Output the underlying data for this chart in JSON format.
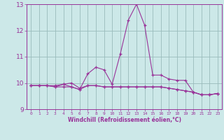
{
  "xlabel": "Windchill (Refroidissement éolien,°C)",
  "xlim": [
    -0.5,
    23.5
  ],
  "ylim": [
    9,
    13
  ],
  "yticks": [
    9,
    10,
    11,
    12,
    13
  ],
  "xticks": [
    0,
    1,
    2,
    3,
    4,
    5,
    6,
    7,
    8,
    9,
    10,
    11,
    12,
    13,
    14,
    15,
    16,
    17,
    18,
    19,
    20,
    21,
    22,
    23
  ],
  "bg_color": "#cce8e8",
  "line_color": "#993399",
  "grid_color": "#99bbbb",
  "series": [
    [
      9.9,
      9.9,
      9.9,
      9.85,
      9.95,
      9.85,
      9.75,
      10.35,
      10.6,
      10.5,
      9.95,
      11.1,
      12.4,
      13.0,
      12.2,
      10.3,
      10.3,
      10.15,
      10.1,
      10.1,
      9.65,
      9.55,
      9.55,
      9.6
    ],
    [
      9.9,
      9.9,
      9.9,
      9.85,
      9.85,
      9.85,
      9.75,
      9.9,
      9.9,
      9.85,
      9.85,
      9.85,
      9.85,
      9.85,
      9.85,
      9.85,
      9.85,
      9.8,
      9.75,
      9.7,
      9.65,
      9.55,
      9.55,
      9.6
    ],
    [
      9.9,
      9.9,
      9.9,
      9.9,
      9.95,
      10.0,
      9.8,
      9.9,
      9.9,
      9.85,
      9.85,
      9.85,
      9.85,
      9.85,
      9.85,
      9.85,
      9.85,
      9.8,
      9.75,
      9.7,
      9.65,
      9.55,
      9.55,
      9.6
    ]
  ]
}
